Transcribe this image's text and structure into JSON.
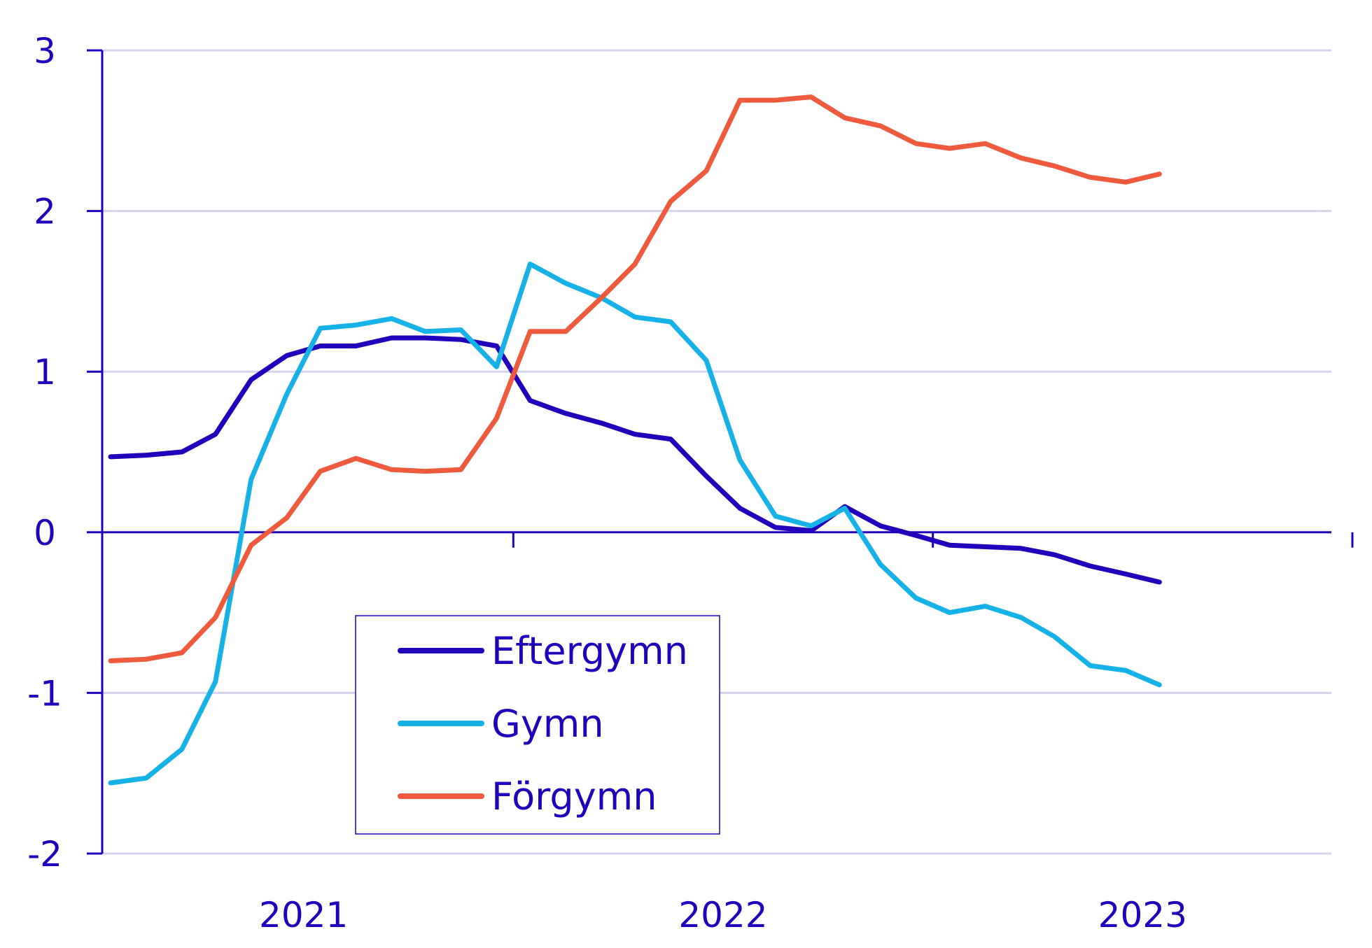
{
  "chart_data": {
    "type": "line",
    "title": "",
    "xlabel": "",
    "ylabel": "",
    "ylim": [
      -2,
      3
    ],
    "yticks": [
      "3",
      "2",
      "1",
      "0",
      "-1",
      "-2"
    ],
    "ytick_values": [
      3,
      2,
      1,
      0,
      -1,
      -2
    ],
    "xlim": [
      2020.52,
      2023.45
    ],
    "xticks": [
      "2021",
      "2022",
      "2023"
    ],
    "xtick_positions": [
      2021,
      2022,
      2023
    ],
    "x_boundaries": [
      2021.5,
      2022.5,
      2023.5
    ],
    "grid": true,
    "legend_position": "bottom-left",
    "x": [
      2020.54,
      2020.625,
      2020.71,
      2020.79,
      2020.875,
      2020.96,
      2021.04,
      2021.125,
      2021.21,
      2021.29,
      2021.375,
      2021.46,
      2021.54,
      2021.625,
      2021.71,
      2021.79,
      2021.875,
      2021.96,
      2022.04,
      2022.125,
      2022.21,
      2022.29,
      2022.375,
      2022.46,
      2022.54,
      2022.625,
      2022.71,
      2022.79,
      2022.875,
      2022.96,
      2023.04
    ],
    "series": [
      {
        "name": "Eftergymn",
        "color": "#2200bb",
        "values": [
          0.47,
          0.48,
          0.5,
          0.61,
          0.95,
          1.1,
          1.16,
          1.16,
          1.21,
          1.21,
          1.2,
          1.16,
          0.82,
          0.74,
          0.68,
          0.61,
          0.58,
          0.35,
          0.15,
          0.03,
          0.01,
          0.16,
          0.04,
          -0.02,
          -0.08,
          -0.09,
          -0.1,
          -0.14,
          -0.21,
          -0.26,
          -0.31
        ]
      },
      {
        "name": "Gymn",
        "color": "#16b1e6",
        "values": [
          -1.56,
          -1.53,
          -1.35,
          -0.93,
          0.33,
          0.86,
          1.27,
          1.29,
          1.33,
          1.25,
          1.26,
          1.03,
          1.67,
          1.55,
          1.46,
          1.34,
          1.31,
          1.07,
          0.45,
          0.1,
          0.04,
          0.15,
          -0.2,
          -0.41,
          -0.5,
          -0.46,
          -0.53,
          -0.65,
          -0.83,
          -0.86,
          -0.95
        ]
      },
      {
        "name": "Förgymn",
        "color": "#ee5a3d",
        "values": [
          -0.8,
          -0.79,
          -0.75,
          -0.53,
          -0.08,
          0.09,
          0.38,
          0.46,
          0.39,
          0.38,
          0.39,
          0.71,
          1.25,
          1.25,
          1.46,
          1.67,
          2.06,
          2.25,
          2.69,
          2.69,
          2.71,
          2.58,
          2.53,
          2.42,
          2.39,
          2.42,
          2.33,
          2.28,
          2.21,
          2.18,
          2.23
        ]
      }
    ]
  }
}
